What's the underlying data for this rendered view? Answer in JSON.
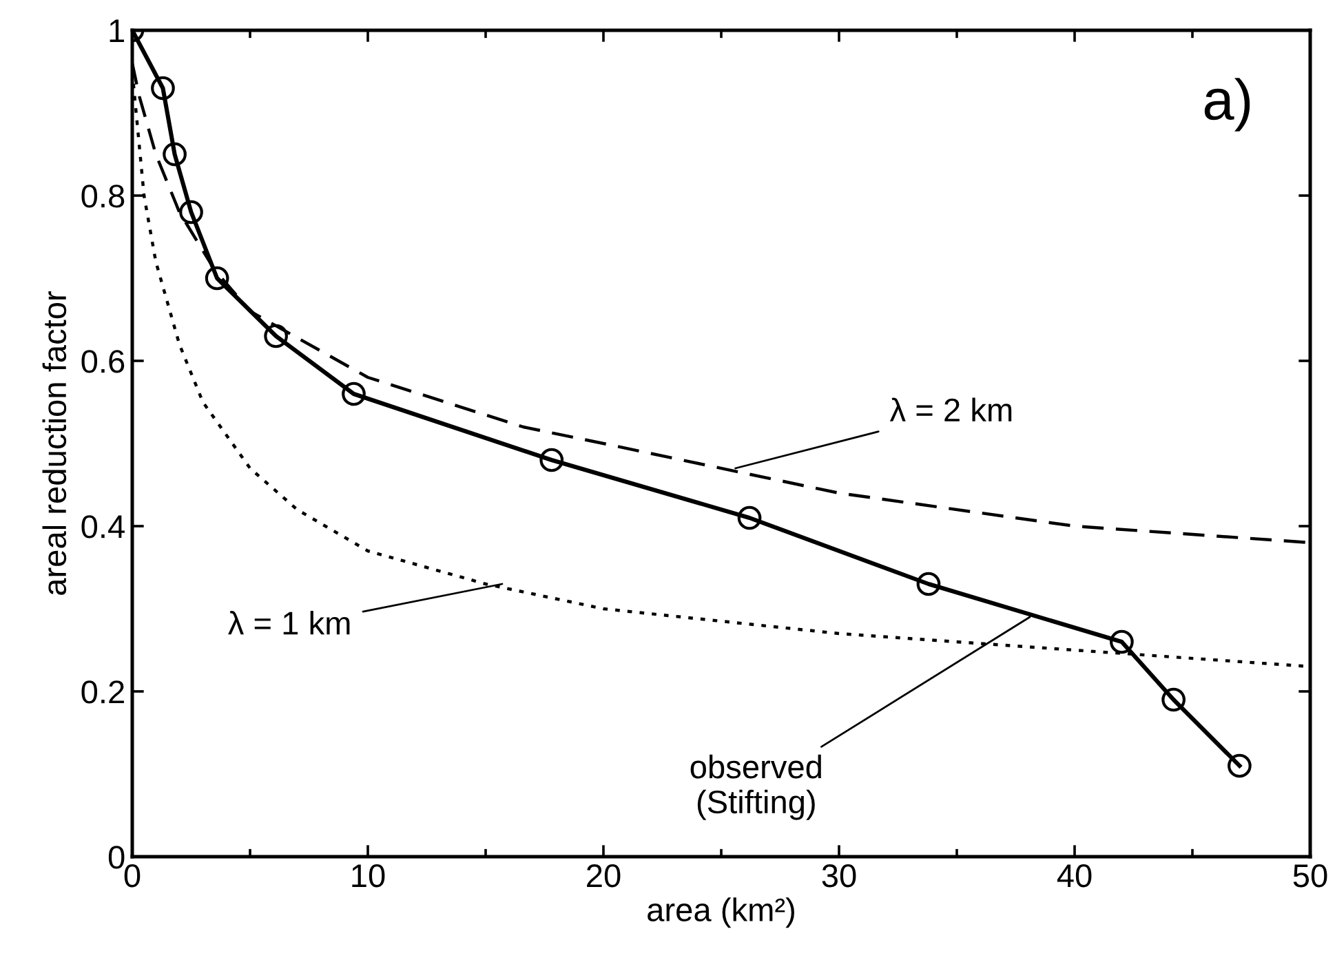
{
  "chart_data": {
    "type": "line",
    "xlabel": "area (km²)",
    "ylabel": "areal reduction factor",
    "xlim": [
      0,
      50
    ],
    "ylim": [
      0,
      1
    ],
    "xticks": [
      0,
      10,
      20,
      30,
      40,
      50
    ],
    "yticks": [
      0,
      0.2,
      0.4,
      0.6,
      0.8,
      1
    ],
    "grid": false,
    "legend": false,
    "series": [
      {
        "color": "#000000",
        "marker": "circle",
        "line_style": "solid",
        "x": [
          0,
          1.3,
          1.8,
          2.5,
          3.6,
          6.1,
          9.4,
          17.8,
          26.2,
          33.8,
          42.0,
          44.2,
          47.0
        ],
        "values": [
          1,
          0.93,
          0.85,
          0.78,
          0.7,
          0.63,
          0.56,
          0.48,
          0.41,
          0.33,
          0.26,
          0.19,
          0.11
        ]
      },
      {
        "color": "#000000",
        "marker": "none",
        "line_style": "dashed",
        "x": [
          0,
          0.3,
          1,
          2,
          3.5,
          5,
          10,
          16.6,
          20,
          30,
          40,
          50
        ],
        "values": [
          0.96,
          0.92,
          0.85,
          0.78,
          0.71,
          0.66,
          0.58,
          0.52,
          0.5,
          0.44,
          0.4,
          0.38
        ]
      },
      {
        "color": "#000000",
        "marker": "none",
        "line_style": "dotted",
        "x": [
          0,
          0.5,
          1,
          2,
          3,
          5,
          7,
          10,
          15,
          20,
          30,
          40,
          50
        ],
        "values": [
          0.95,
          0.8,
          0.72,
          0.62,
          0.55,
          0.47,
          0.42,
          0.37,
          0.33,
          0.3,
          0.27,
          0.25,
          0.23
        ]
      }
    ],
    "annotations": [
      "a)",
      {
        "text": "λ = 2 km",
        "x": 25.6,
        "y": 0.47
      },
      {
        "text": "λ = 1 km",
        "x": 15.7,
        "y": 0.33
      },
      {
        "text": "observed\n(Stifting)",
        "x": 38.1,
        "y": 0.29
      }
    ]
  }
}
